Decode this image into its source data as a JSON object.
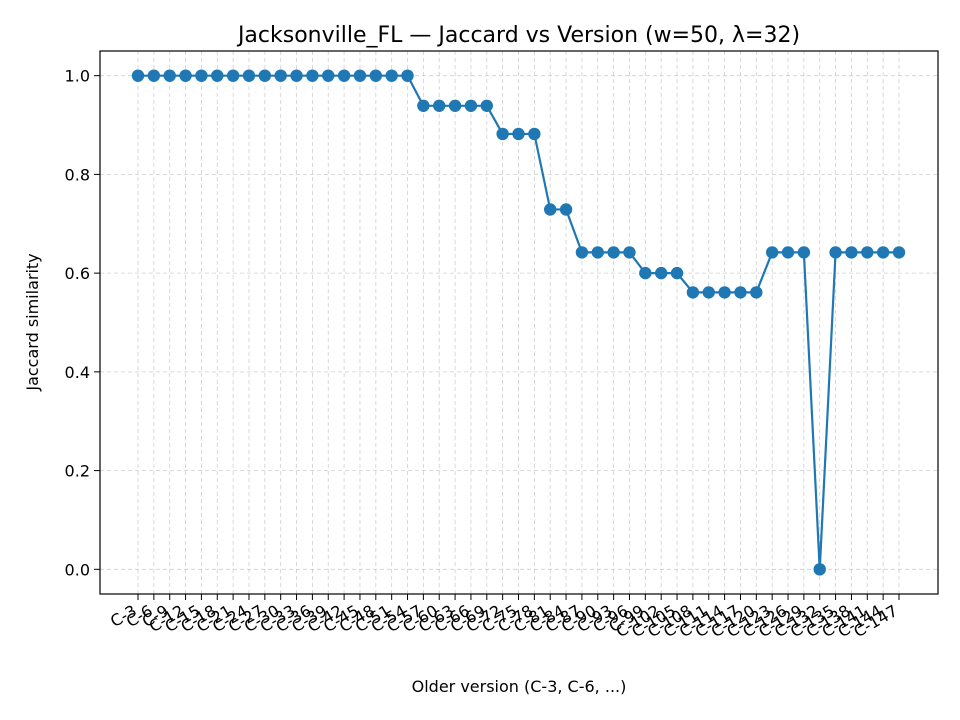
{
  "chart_data": {
    "type": "line",
    "title": "Jacksonville_FL — Jaccard vs Version (w=50, λ=32)",
    "xlabel": "Older version (C-3, C-6, ...)",
    "ylabel": "Jaccard similarity",
    "categories": [
      "C-3",
      "C-6",
      "C-9",
      "C-12",
      "C-15",
      "C-18",
      "C-21",
      "C-24",
      "C-27",
      "C-30",
      "C-33",
      "C-36",
      "C-39",
      "C-42",
      "C-45",
      "C-48",
      "C-51",
      "C-54",
      "C-57",
      "C-60",
      "C-63",
      "C-66",
      "C-69",
      "C-72",
      "C-75",
      "C-78",
      "C-81",
      "C-84",
      "C-87",
      "C-90",
      "C-93",
      "C-96",
      "C-99",
      "C-102",
      "C-105",
      "C-108",
      "C-111",
      "C-114",
      "C-117",
      "C-120",
      "C-123",
      "C-126",
      "C-129",
      "C-132",
      "C-135",
      "C-138",
      "C-141",
      "C-144",
      "C-147"
    ],
    "values": [
      1.0,
      1.0,
      1.0,
      1.0,
      1.0,
      1.0,
      1.0,
      1.0,
      1.0,
      1.0,
      1.0,
      1.0,
      1.0,
      1.0,
      1.0,
      1.0,
      1.0,
      1.0,
      0.939,
      0.939,
      0.939,
      0.939,
      0.939,
      0.882,
      0.882,
      0.882,
      0.729,
      0.729,
      0.642,
      0.642,
      0.642,
      0.642,
      0.6,
      0.6,
      0.6,
      0.561,
      0.561,
      0.561,
      0.561,
      0.561,
      0.642,
      0.642,
      0.642,
      0.0,
      0.642,
      0.642,
      0.642,
      0.642,
      0.642
    ],
    "ylim": [
      -0.05,
      1.05
    ],
    "yticks": [
      0.0,
      0.2,
      0.4,
      0.6,
      0.8,
      1.0
    ],
    "ytick_labels": [
      "0.0",
      "0.2",
      "0.4",
      "0.6",
      "0.8",
      "1.0"
    ],
    "grid": true,
    "color": "#1f77b4"
  }
}
